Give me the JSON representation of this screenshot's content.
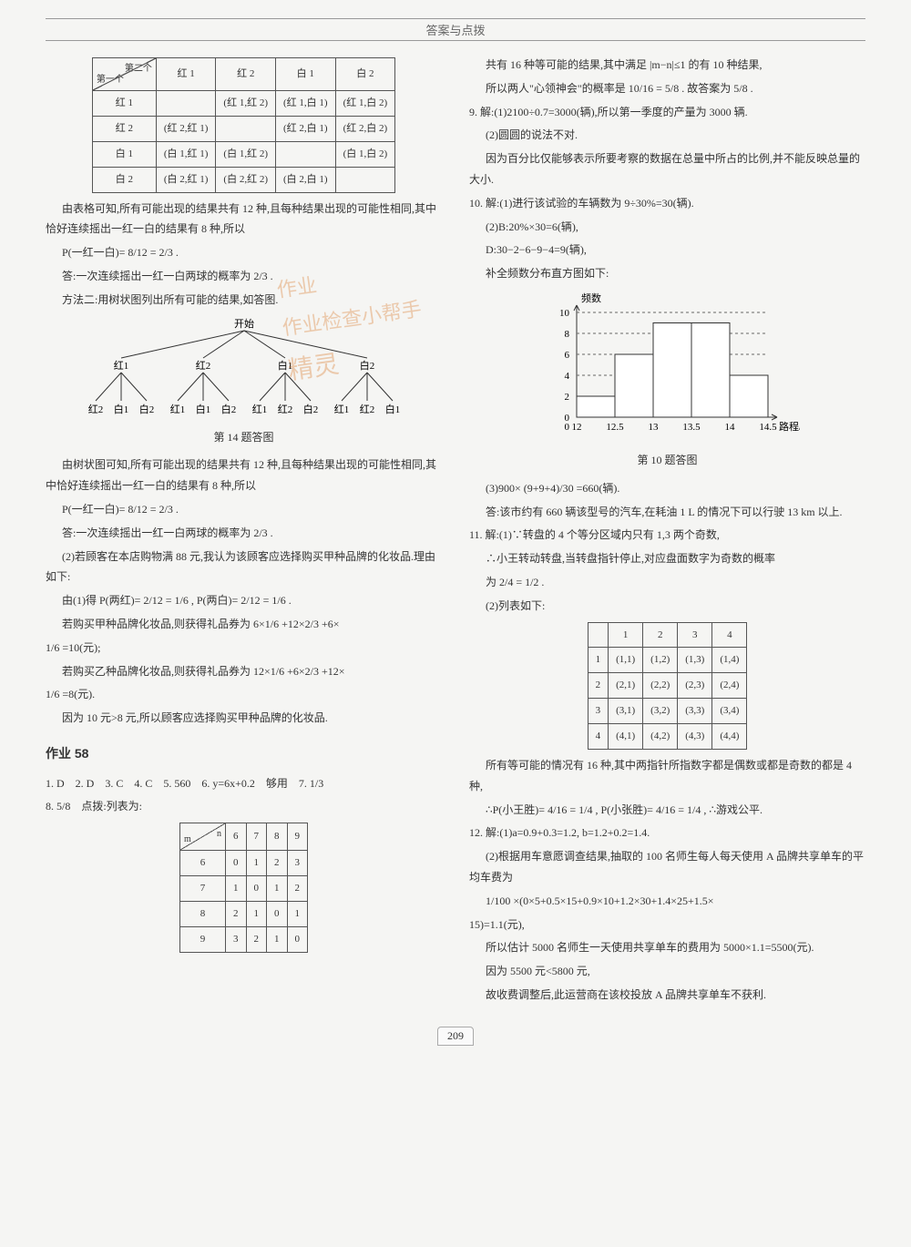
{
  "header": "答案与点拨",
  "page_number": "209",
  "watermark": {
    "line1": "作业",
    "line2": "作业检查小帮手",
    "line3": "精灵"
  },
  "table14": {
    "diag_top": "第二个",
    "diag_bottom": "第一个",
    "col_headers": [
      "红 1",
      "红 2",
      "白 1",
      "白 2"
    ],
    "rows": [
      {
        "h": "红 1",
        "c": [
          "",
          "(红 1,红 2)",
          "(红 1,白 1)",
          "(红 1,白 2)"
        ]
      },
      {
        "h": "红 2",
        "c": [
          "(红 2,红 1)",
          "",
          "(红 2,白 1)",
          "(红 2,白 2)"
        ]
      },
      {
        "h": "白 1",
        "c": [
          "(白 1,红 1)",
          "(白 1,红 2)",
          "",
          "(白 1,白 2)"
        ]
      },
      {
        "h": "白 2",
        "c": [
          "(白 2,红 1)",
          "(白 2,红 2)",
          "(白 2,白 1)",
          ""
        ]
      }
    ]
  },
  "text": {
    "p1": "由表格可知,所有可能出现的结果共有 12 种,且每种结果出现的可能性相同,其中恰好连续摇出一红一白的结果有 8 种,所以",
    "p2": "P(一红一白)= 8/12 = 2/3 .",
    "p3": "答:一次连续摇出一红一白两球的概率为 2/3 .",
    "p4": "方法二:用树状图列出所有可能的结果,如答图.",
    "tree_top": "开始",
    "tree_level1": [
      "红1",
      "红2",
      "白1",
      "白2"
    ],
    "tree_leaves": [
      "红2",
      "白1",
      "白2",
      "红1",
      "白1",
      "白2",
      "红1",
      "红2",
      "白2",
      "红1",
      "红2",
      "白1"
    ],
    "tree_caption": "第 14 题答图",
    "p5": "由树状图可知,所有可能出现的结果共有 12 种,且每种结果出现的可能性相同,其中恰好连续摇出一红一白的结果有 8 种,所以",
    "p6": "P(一红一白)= 8/12 = 2/3 .",
    "p7": "答:一次连续摇出一红一白两球的概率为 2/3 .",
    "p8": "(2)若顾客在本店购物满 88 元,我认为该顾客应选择购买甲种品牌的化妆品.理由如下:",
    "p9": "由(1)得 P(两红)= 2/12 = 1/6 , P(两白)= 2/12 = 1/6 .",
    "p10": "若购买甲种品牌化妆品,则获得礼品券为 6×1/6 +12×2/3 +6×",
    "p10b": "1/6 =10(元);",
    "p11": "若购买乙种品牌化妆品,则获得礼品券为 12×1/6 +6×2/3 +12×",
    "p11b": "1/6 =8(元).",
    "p12": "因为 10 元>8 元,所以顾客应选择购买甲种品牌的化妆品.",
    "hw58_title": "作业 58",
    "hw58_line1": "1. D　2. D　3. C　4. C　5. 560　6. y=6x+0.2　够用　7. 1/3",
    "hw58_line2": "8. 5/8　点拨:列表为:",
    "r1": "共有 16 种等可能的结果,其中满足 |m−n|≤1 的有 10 种结果,",
    "r2": "所以两人\"心领神会\"的概率是 10/16 = 5/8 . 故答案为 5/8 .",
    "r3": "9. 解:(1)2100÷0.7=3000(辆),所以第一季度的产量为 3000 辆.",
    "r3b": "(2)圆圆的说法不对.",
    "r3c": "因为百分比仅能够表示所要考察的数据在总量中所占的比例,并不能反映总量的大小.",
    "r4": "10. 解:(1)进行该试验的车辆数为 9÷30%=30(辆).",
    "r4b": "(2)B:20%×30=6(辆),",
    "r4c": "D:30−2−6−9−4=9(辆),",
    "r4d": "补全频数分布直方图如下:",
    "chart10_caption": "第 10 题答图",
    "r4e": "(3)900× (9+9+4)/30 =660(辆).",
    "r4f": "答:该市约有 660 辆该型号的汽车,在耗油 1 L 的情况下可以行驶 13 km 以上.",
    "r5": "11. 解:(1)∵转盘的 4 个等分区域内只有 1,3 两个奇数,",
    "r5b": "∴小王转动转盘,当转盘指针停止,对应盘面数字为奇数的概率",
    "r5c": "为 2/4 = 1/2 .",
    "r5d": "(2)列表如下:",
    "r5e": "所有等可能的情况有 16 种,其中两指针所指数字都是偶数或都是奇数的都是 4 种,",
    "r5f": "∴P(小王胜)= 4/16 = 1/4 , P(小张胜)= 4/16 = 1/4 , ∴游戏公平.",
    "r6": "12. 解:(1)a=0.9+0.3=1.2, b=1.2+0.2=1.4.",
    "r6b": "(2)根据用车意愿调查结果,抽取的 100 名师生每人每天使用 A 品牌共享单车的平均车费为",
    "r6c": "1/100 ×(0×5+0.5×15+0.9×10+1.2×30+1.4×25+1.5×",
    "r6d": "15)=1.1(元),",
    "r6e": "所以估计 5000 名师生一天使用共享单车的费用为 5000×1.1=5500(元).",
    "r6f": "因为 5500 元<5800 元,",
    "r6g": "故收费调整后,此运营商在该校投放 A 品牌共享单车不获利."
  },
  "table8": {
    "diag_top": "n",
    "diag_bottom": "m",
    "cols": [
      "6",
      "7",
      "8",
      "9"
    ],
    "rows": [
      {
        "h": "6",
        "c": [
          "0",
          "1",
          "2",
          "3"
        ]
      },
      {
        "h": "7",
        "c": [
          "1",
          "0",
          "1",
          "2"
        ]
      },
      {
        "h": "8",
        "c": [
          "2",
          "1",
          "0",
          "1"
        ]
      },
      {
        "h": "9",
        "c": [
          "3",
          "2",
          "1",
          "0"
        ]
      }
    ]
  },
  "table11": {
    "cols": [
      "",
      "1",
      "2",
      "3",
      "4"
    ],
    "rows": [
      {
        "h": "1",
        "c": [
          "(1,1)",
          "(1,2)",
          "(1,3)",
          "(1,4)"
        ]
      },
      {
        "h": "2",
        "c": [
          "(2,1)",
          "(2,2)",
          "(2,3)",
          "(2,4)"
        ]
      },
      {
        "h": "3",
        "c": [
          "(3,1)",
          "(3,2)",
          "(3,3)",
          "(3,4)"
        ]
      },
      {
        "h": "4",
        "c": [
          "(4,1)",
          "(4,2)",
          "(4,3)",
          "(4,4)"
        ]
      }
    ]
  },
  "chart10": {
    "type": "bar",
    "ylabel": "频数",
    "xlabel": "路程/km",
    "xticks": [
      "12",
      "12.5",
      "13",
      "13.5",
      "14",
      "14.5"
    ],
    "yticks": [
      0,
      2,
      4,
      6,
      8,
      10
    ],
    "bars": [
      2,
      6,
      9,
      9,
      4
    ],
    "bar_color": "#ffffff",
    "bar_border": "#333333",
    "dash_color": "#666666",
    "axis_color": "#333333"
  },
  "tree": {
    "stroke": "#333333",
    "fontsize": 11
  }
}
